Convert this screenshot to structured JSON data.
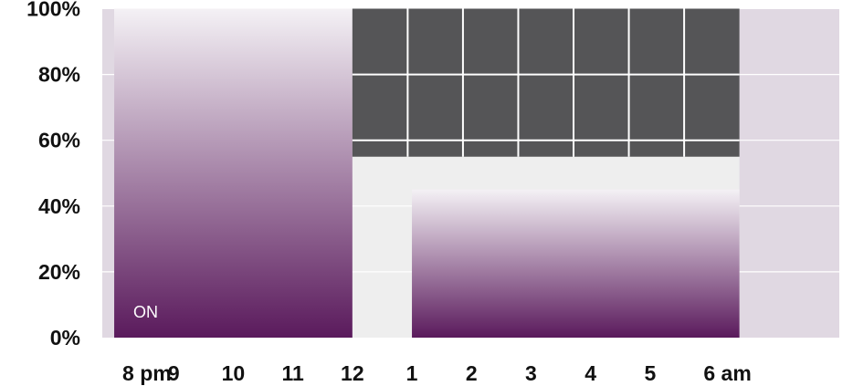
{
  "chart_data": {
    "type": "area",
    "y_ticks": [
      "100%",
      "80%",
      "60%",
      "40%",
      "20%",
      "0%"
    ],
    "y_tick_values": [
      100,
      80,
      60,
      40,
      20,
      0
    ],
    "x_ticks": [
      "8 pm",
      "9",
      "10",
      "11",
      "12",
      "1",
      "2",
      "3",
      "4",
      "5",
      "6 am"
    ],
    "x_tick_hours": [
      20,
      21,
      22,
      23,
      24,
      25,
      26,
      27,
      28,
      29,
      30
    ],
    "ylim": [
      0,
      100
    ],
    "series": [
      {
        "label": "ON",
        "segments": [
          {
            "start_hour": 20,
            "end_hour": 24,
            "level": 100
          },
          {
            "start_hour": 25,
            "end_hour": 30.5,
            "level": 45
          }
        ]
      }
    ],
    "dark_block": {
      "start_hour": 24,
      "end_hour": 30.5,
      "level_from": 55,
      "level_to": 100
    },
    "colors": {
      "plot_background": "#eeeeee",
      "edge_band": "#e0d8e2",
      "fill_bottom": "#5a1a5c",
      "fill_top": "#f4f1f5",
      "dark_block": "#555557",
      "grid_line": "#ffffff"
    },
    "grid": true
  }
}
